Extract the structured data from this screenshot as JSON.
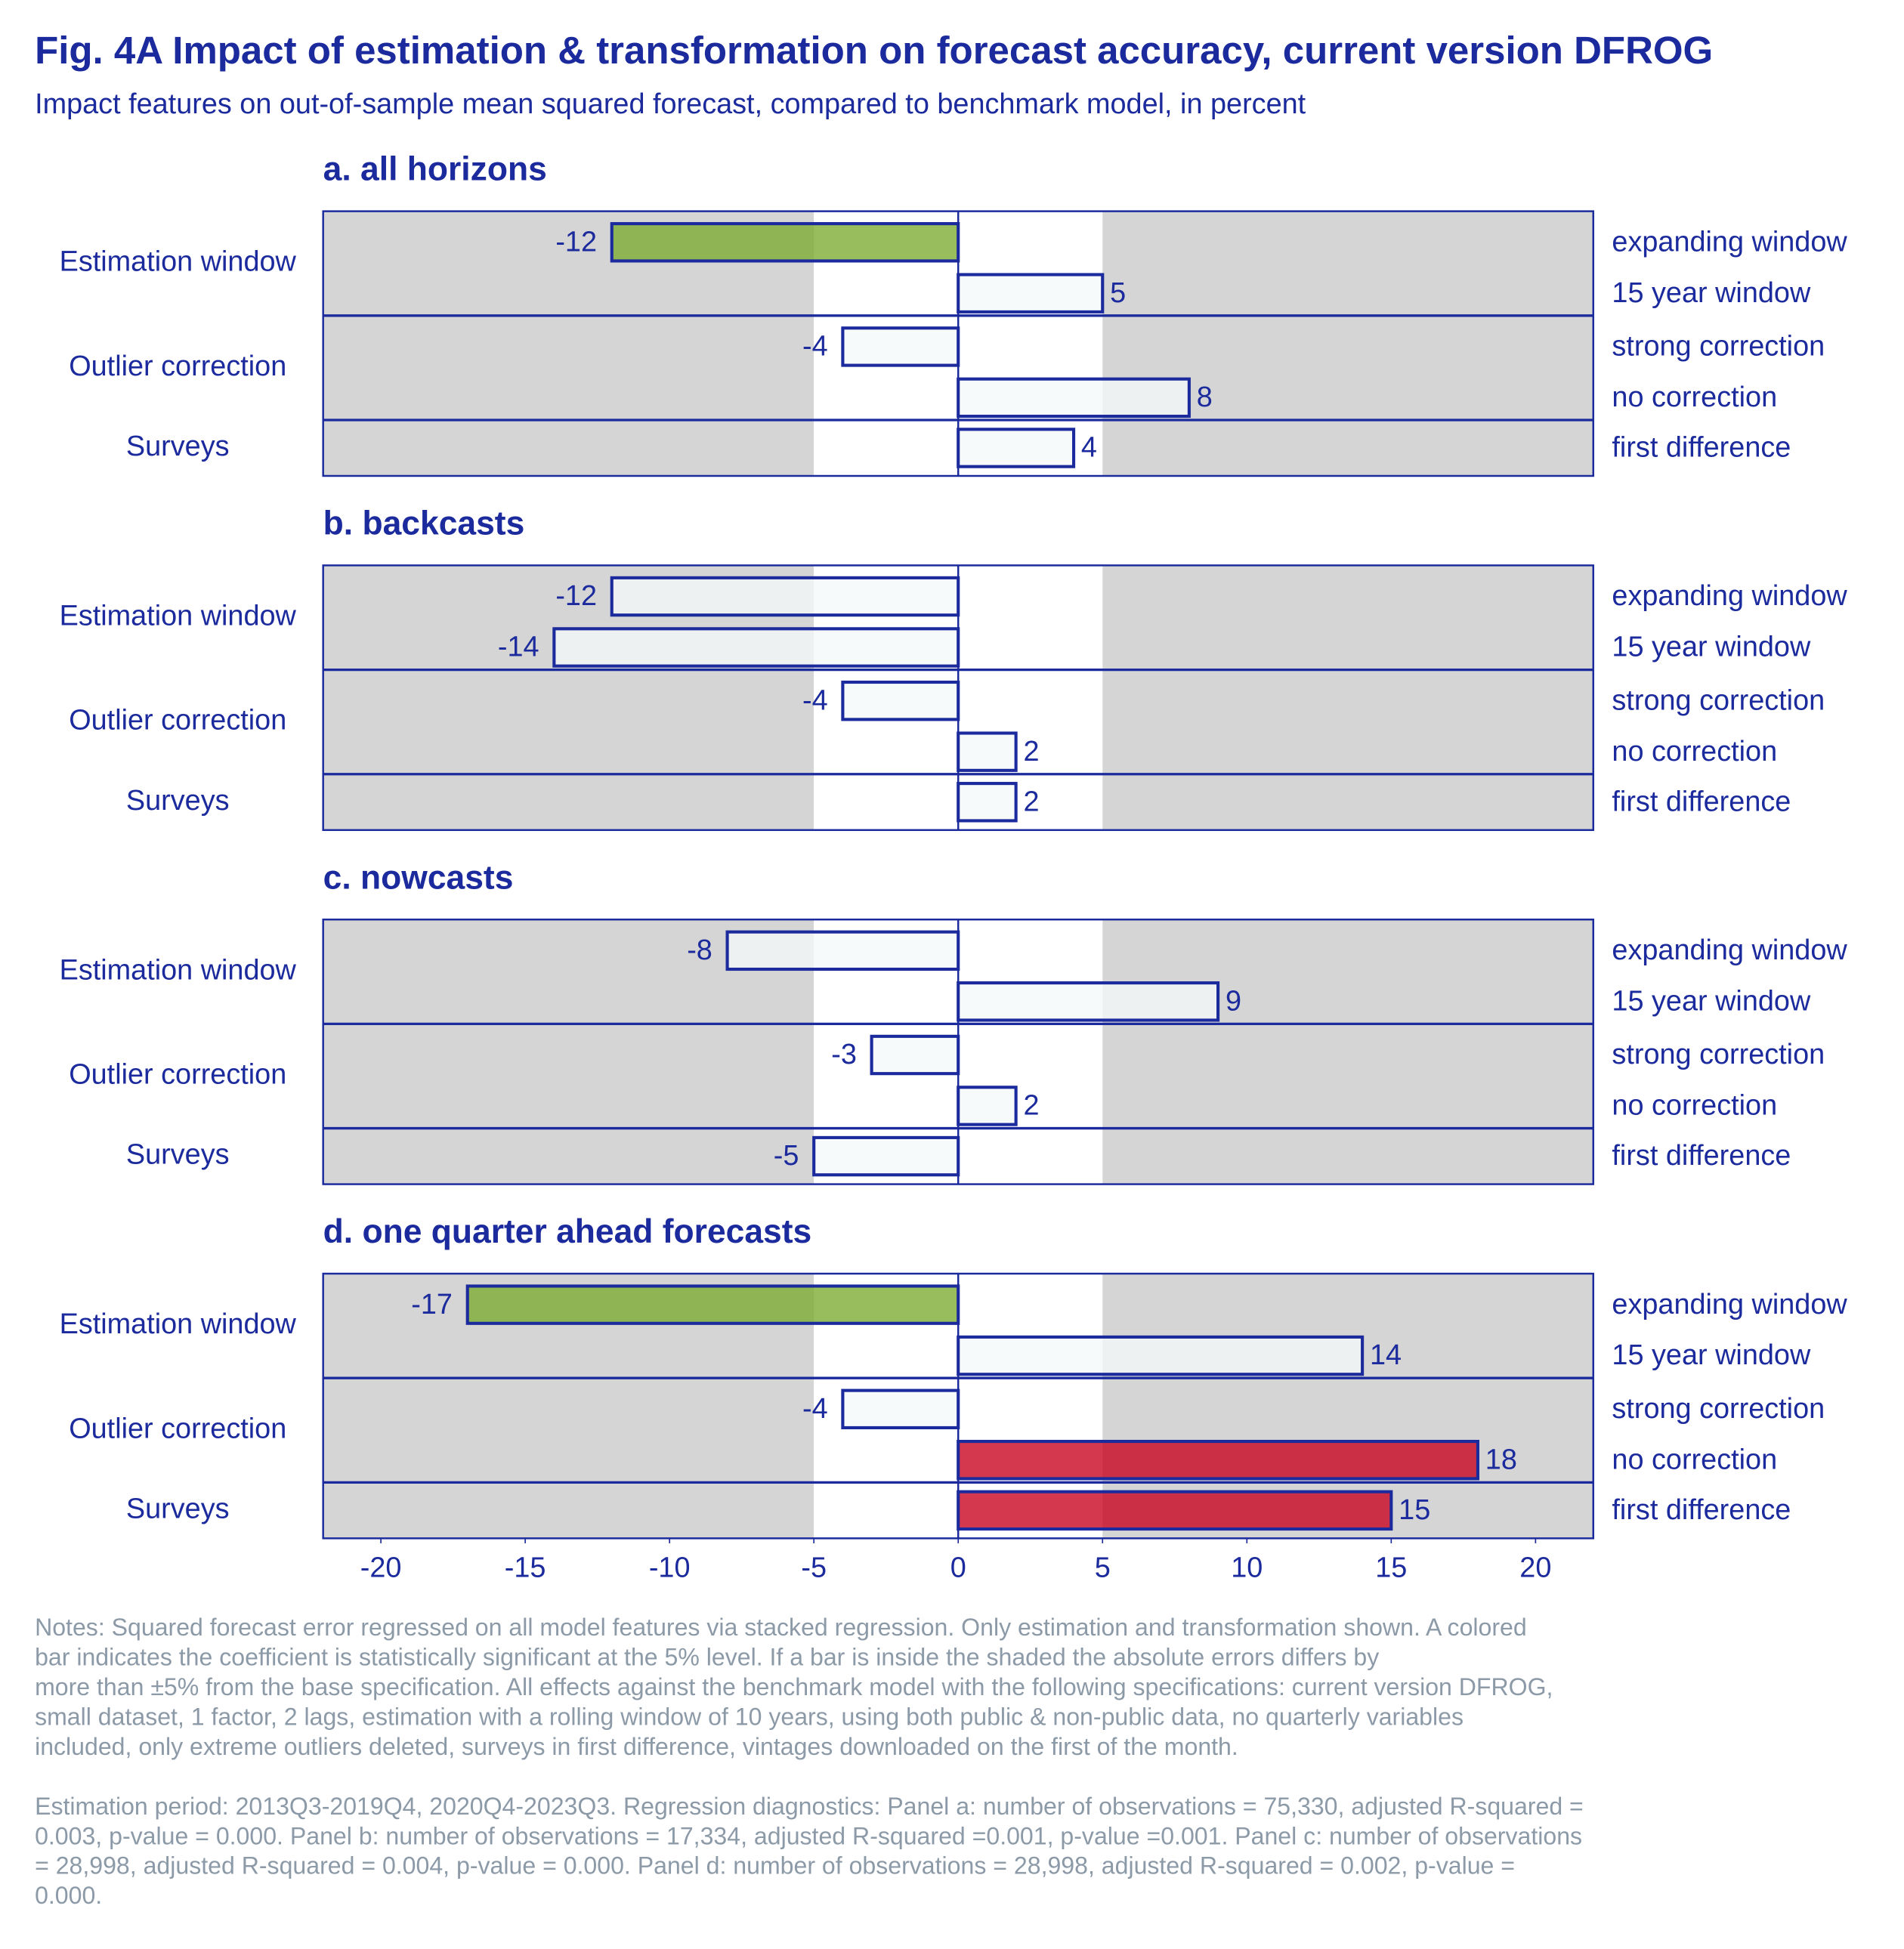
{
  "title": "Fig. 4A Impact of estimation & transformation on forecast accuracy, current version DFROG",
  "subtitle": "Impact features on out-of-sample mean squared forecast, compared to benchmark model, in percent",
  "notes": [
    [
      "Notes: Squared forecast error regressed on all model features via stacked regression. Only estimation and transformation shown. A colored",
      "bar indicates the coefficient is statistically significant at the 5% level. If a bar is inside the shaded the absolute errors differs by",
      "more than ±5% from the base specification. All effects against the benchmark model with the following specifications: current version DFROG,",
      "small dataset, 1 factor, 2 lags, estimation with a rolling window of 10 years, using both public & non-public data, no quarterly variables",
      "included, only extreme outliers deleted, surveys in first difference, vintages downloaded on the first of the month."
    ],
    [
      " Estimation period: 2013Q3-2019Q4, 2020Q4-2023Q3. Regression diagnostics: Panel a: number of observations = 75,330, adjusted R-squared =",
      "0.003, p-value = 0.000. Panel b: number of observations = 17,334, adjusted R-squared =0.001, p-value =0.001. Panel c: number of observations",
      "= 28,998, adjusted R-squared = 0.004, p-value = 0.000. Panel d: number of observations = 28,998, adjusted R-squared = 0.002, p-value =",
      "0.000."
    ]
  ],
  "chart_data": [
    {
      "type": "bar",
      "title": "a. all horizons",
      "groups": [
        "Estimation window",
        "Estimation window",
        "Outlier correction",
        "Outlier correction",
        "Surveys"
      ],
      "categories": [
        "expanding window",
        "15 year window",
        "strong correction",
        "no correction",
        "first difference"
      ],
      "values": [
        -12,
        5,
        -4,
        8,
        4
      ],
      "colors": [
        "#7aaa2e",
        "#f5f9f9",
        "#f5f9f9",
        "#f5f9f9",
        "#f5f9f9"
      ],
      "xlim": [
        -22,
        22
      ],
      "shaded_outside": [
        -5,
        5
      ]
    },
    {
      "type": "bar",
      "title": "b. backcasts",
      "groups": [
        "Estimation window",
        "Estimation window",
        "Outlier correction",
        "Outlier correction",
        "Surveys"
      ],
      "categories": [
        "expanding window",
        "15 year window",
        "strong correction",
        "no correction",
        "first difference"
      ],
      "values": [
        -12,
        -14,
        -4,
        2,
        2
      ],
      "colors": [
        "#f5f9f9",
        "#f5f9f9",
        "#f5f9f9",
        "#f5f9f9",
        "#f5f9f9"
      ],
      "xlim": [
        -22,
        22
      ],
      "shaded_outside": [
        -5,
        5
      ]
    },
    {
      "type": "bar",
      "title": "c. nowcasts",
      "groups": [
        "Estimation window",
        "Estimation window",
        "Outlier correction",
        "Outlier correction",
        "Surveys"
      ],
      "categories": [
        "expanding window",
        "15 year window",
        "strong correction",
        "no correction",
        "first difference"
      ],
      "values": [
        -8,
        9,
        -3,
        2,
        -5
      ],
      "colors": [
        "#f5f9f9",
        "#f5f9f9",
        "#f5f9f9",
        "#f5f9f9",
        "#f5f9f9"
      ],
      "xlim": [
        -22,
        22
      ],
      "shaded_outside": [
        -5,
        5
      ]
    },
    {
      "type": "bar",
      "title": "d. one quarter ahead forecasts",
      "groups": [
        "Estimation window",
        "Estimation window",
        "Outlier correction",
        "Outlier correction",
        "Surveys"
      ],
      "categories": [
        "expanding window",
        "15 year window",
        "strong correction",
        "no correction",
        "first difference"
      ],
      "values": [
        -17,
        14,
        -4,
        18,
        15
      ],
      "colors": [
        "#7aaa2e",
        "#f5f9f9",
        "#f5f9f9",
        "#c8001e",
        "#c8001e"
      ],
      "xlim": [
        -22,
        22
      ],
      "shaded_outside": [
        -5,
        5
      ],
      "xticks": [
        -20,
        -15,
        -10,
        -5,
        0,
        5,
        10,
        15,
        20
      ]
    }
  ]
}
